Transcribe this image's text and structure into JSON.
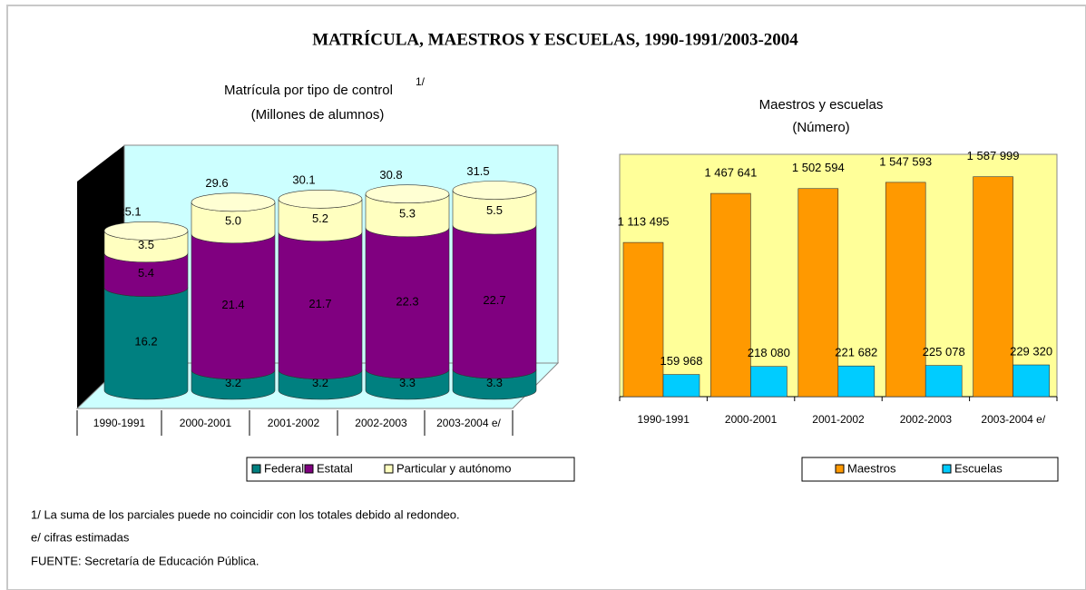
{
  "title": "MATRÍCULA, MAESTROS Y ESCUELAS, 1990-1991/2003-2004",
  "notes": [
    "1/ La suma de los parciales puede no coincidir con los totales debido al redondeo.",
    "e/ cifras estimadas",
    "FUENTE: Secretaría de Educación Pública."
  ],
  "chart_data": [
    {
      "type": "cylinder",
      "title": "Matrícula por tipo de control",
      "title_superscript": "1/",
      "subtitle": "(Millones de alumnos)",
      "categories": [
        "1990-1991",
        "2000-2001",
        "2001-2002",
        "2002-2003",
        "2003-2004 e/"
      ],
      "series": [
        {
          "name": "Federal",
          "color": "#008080",
          "values": [
            16.2,
            3.2,
            3.2,
            3.3,
            3.3
          ]
        },
        {
          "name": "Estatal",
          "color": "#800080",
          "values": [
            5.4,
            21.4,
            21.7,
            22.3,
            22.7
          ]
        },
        {
          "name": "Particular y autónomo",
          "color": "#ffffc0",
          "values": [
            3.5,
            5,
            5.2,
            5.3,
            5.5
          ],
          "value_labels": [
            "3.5",
            "5.0",
            "5.2",
            "5.3",
            "5.5"
          ]
        }
      ],
      "totals": [
        25.1,
        29.6,
        30.1,
        30.8,
        31.5
      ],
      "ylim": [
        0,
        40
      ]
    },
    {
      "type": "bar",
      "title": "Maestros y escuelas",
      "subtitle": "(Número)",
      "categories": [
        "1990-1991",
        "2000-2001",
        "2001-2002",
        "2002-2003",
        "2003-2004 e/"
      ],
      "series": [
        {
          "name": "Maestros",
          "color": "#ff9900",
          "values": [
            1113495,
            1467641,
            1502594,
            1547593,
            1587999
          ],
          "value_labels": [
            "1 113 495",
            "1 467 641",
            "1 502 594",
            "1 547 593",
            "1 587 999"
          ]
        },
        {
          "name": "Escuelas",
          "color": "#00ccff",
          "values": [
            159968,
            218080,
            221682,
            225078,
            229320
          ],
          "value_labels": [
            "159 968",
            "218 080",
            "221 682",
            "225 078",
            "229 320"
          ]
        }
      ],
      "ylim": [
        0,
        1750000
      ]
    }
  ]
}
